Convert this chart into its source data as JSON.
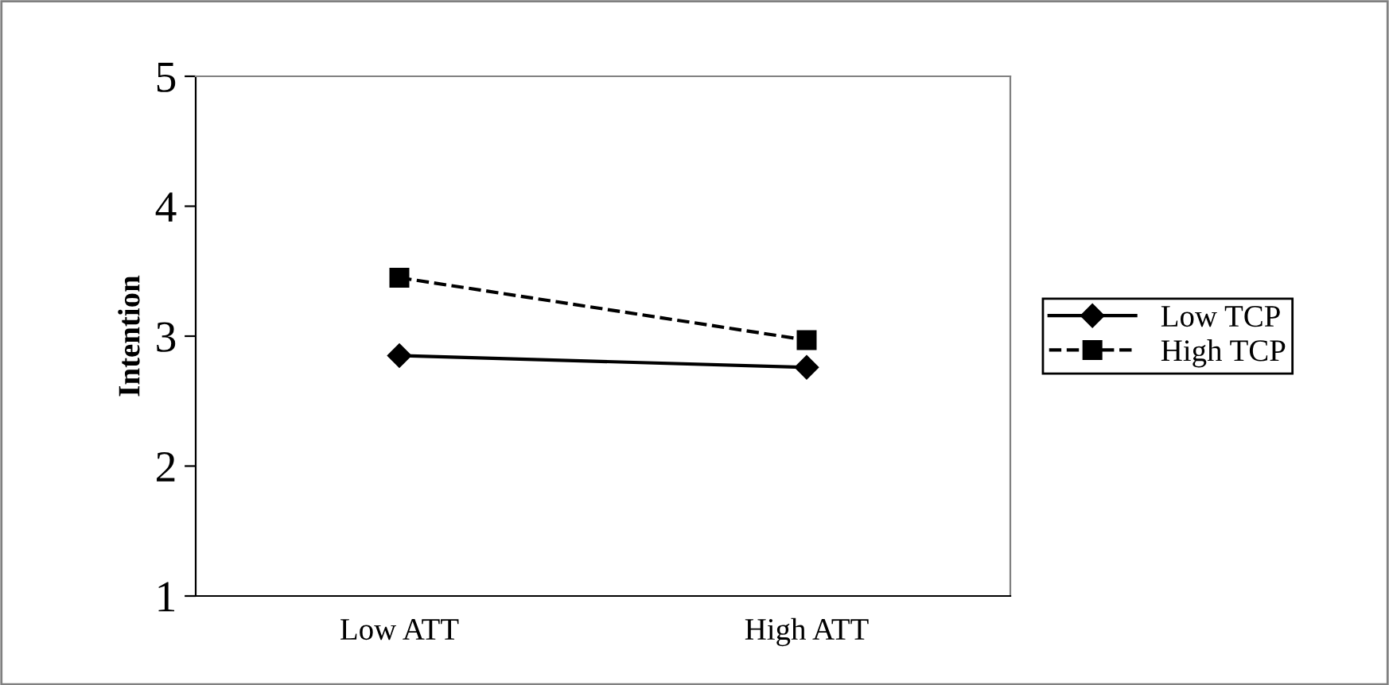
{
  "chart_data": {
    "type": "line",
    "ylabel": "Intention",
    "categories": [
      "Low ATT",
      "High ATT"
    ],
    "series": [
      {
        "name": "Low TCP",
        "color": "#000000",
        "values": [
          2.85,
          2.76
        ],
        "marker": "diamond",
        "line_style": "solid"
      },
      {
        "name": "High TCP",
        "color": "#000000",
        "values": [
          3.45,
          2.97
        ],
        "marker": "square",
        "line_style": "dashed"
      }
    ],
    "ylim": [
      1,
      5
    ],
    "yticks": [
      1,
      2,
      3,
      4,
      5
    ],
    "grid": false,
    "legend": "right"
  }
}
